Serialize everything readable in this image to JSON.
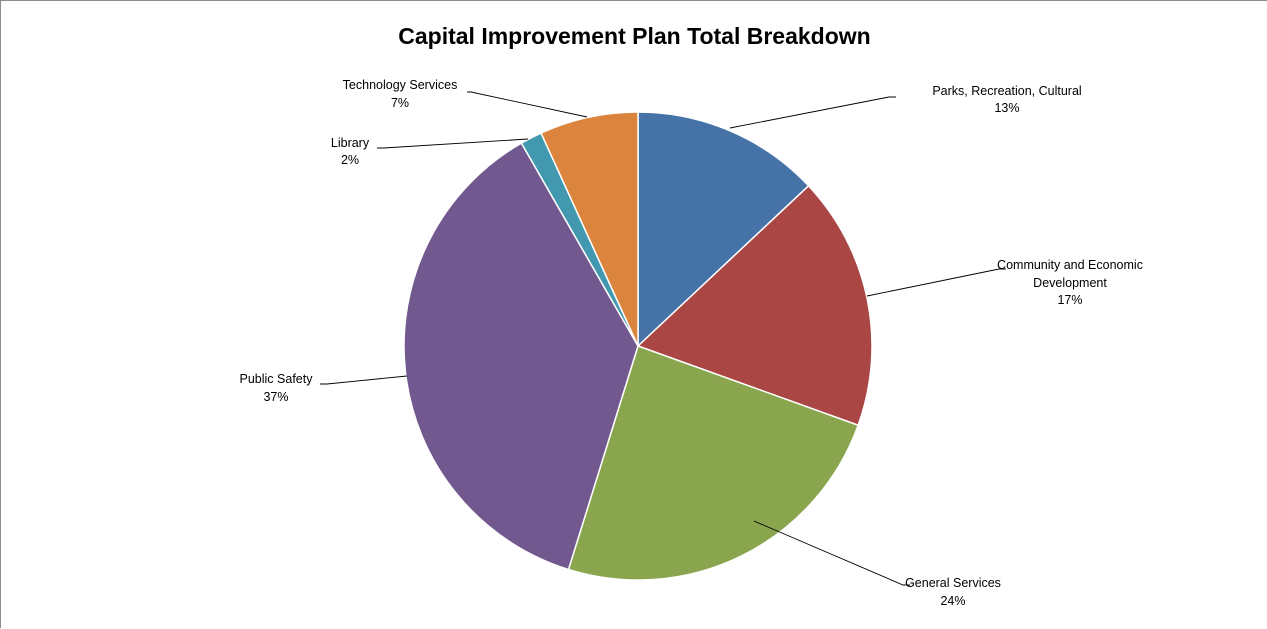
{
  "chart_data": {
    "type": "pie",
    "title": "Capital Improvement Plan Total Breakdown",
    "slices": [
      {
        "label": "Parks, Recreation, Cultural",
        "percent_label": "13%",
        "value": 13.0,
        "color": "#4572a7"
      },
      {
        "label": "Community and Economic Development",
        "percent_label": "17%",
        "value": 17.5,
        "color": "#aa4643"
      },
      {
        "label": "General Services",
        "percent_label": "24%",
        "value": 24.3,
        "color": "#89a54e"
      },
      {
        "label": "Public Safety",
        "percent_label": "37%",
        "value": 36.9,
        "color": "#71588f"
      },
      {
        "label": "Library",
        "percent_label": "2%",
        "value": 1.5,
        "color": "#4198af"
      },
      {
        "label": "Technology Services",
        "percent_label": "7%",
        "value": 6.8,
        "color": "#db843d"
      }
    ],
    "legend": "none",
    "data_labels": "outside with leader lines"
  }
}
